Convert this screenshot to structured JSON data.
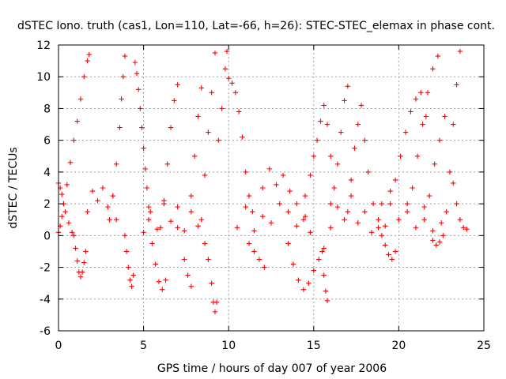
{
  "chart_data": {
    "type": "scatter",
    "title": "dSTEC Iono. truth (cas1, Lon=110, Lat=-66, h=26): STEC-STEC_elemax in phase cont.",
    "xlabel": "GPS time / hours of day 007 of year 2006",
    "ylabel": "dSTEC  / TECUs",
    "xlim": [
      0,
      25
    ],
    "ylim": [
      -6,
      12
    ],
    "x_ticks": [
      0,
      5,
      10,
      15,
      20,
      25
    ],
    "y_ticks": [
      -6,
      -4,
      -2,
      0,
      2,
      4,
      6,
      8,
      10,
      12
    ],
    "x_tick_labels": [
      "0",
      "5",
      "10",
      "15",
      "20",
      "25"
    ],
    "y_tick_labels": [
      "-6",
      "-4",
      "-2",
      "0",
      "2",
      "4",
      "6",
      "8",
      "10",
      "12"
    ],
    "grid": true,
    "marker": "plus",
    "color": "#ff0000",
    "series": [
      {
        "x": [
          0.0,
          0.1,
          0.2,
          0.3,
          0.5,
          0.7,
          0.9,
          1.1,
          1.3,
          1.5,
          1.7,
          1.8
        ],
        "y": [
          0.2,
          0.6,
          1.2,
          2.0,
          3.2,
          4.6,
          6.0,
          7.2,
          8.6,
          10.0,
          11.0,
          11.4
        ]
      },
      {
        "x": [
          0.0,
          0.1,
          0.2,
          0.3,
          0.4,
          0.6,
          0.8
        ],
        "y": [
          3.3,
          3.0,
          2.6,
          2.0,
          1.5,
          0.8,
          0.2
        ]
      },
      {
        "x": [
          0.9,
          1.0,
          1.1,
          1.2,
          1.3,
          1.4,
          1.5,
          1.6
        ],
        "y": [
          0.0,
          -0.8,
          -1.6,
          -2.3,
          -2.6,
          -2.3,
          -1.7,
          -1.0
        ]
      },
      {
        "x": [
          1.7,
          2.0,
          2.3,
          2.6,
          2.9,
          3.2,
          3.4
        ],
        "y": [
          1.5,
          2.8,
          2.2,
          3.0,
          1.8,
          2.5,
          1.0
        ]
      },
      {
        "x": [
          3.0,
          3.2,
          3.4,
          3.6,
          3.7,
          3.8,
          3.9
        ],
        "y": [
          1.0,
          2.5,
          4.5,
          6.8,
          8.6,
          10.0,
          11.3
        ]
      },
      {
        "x": [
          3.9,
          4.0,
          4.1,
          4.2,
          4.3,
          4.4
        ],
        "y": [
          0.0,
          -1.0,
          -2.0,
          -2.8,
          -3.2,
          -2.5
        ]
      },
      {
        "x": [
          4.5,
          4.6,
          4.7,
          4.8,
          4.9,
          5.0,
          5.1,
          5.2,
          5.3
        ],
        "y": [
          10.9,
          10.2,
          9.2,
          8.0,
          6.8,
          5.5,
          4.2,
          3.0,
          1.8
        ]
      },
      {
        "x": [
          5.3,
          5.5,
          5.7,
          5.9,
          6.1,
          6.3
        ],
        "y": [
          1.0,
          -0.5,
          -1.8,
          -2.9,
          -3.4,
          -2.8
        ]
      },
      {
        "x": [
          6.0,
          6.2,
          6.4,
          6.6,
          6.8,
          7.0
        ],
        "y": [
          0.5,
          2.0,
          4.5,
          6.8,
          8.5,
          9.5
        ]
      },
      {
        "x": [
          5.0,
          5.4,
          5.8,
          6.2,
          6.6,
          7.0,
          7.4,
          7.8,
          8.2
        ],
        "y": [
          0.2,
          1.5,
          0.4,
          2.2,
          0.9,
          1.8,
          0.3,
          1.5,
          0.6
        ]
      },
      {
        "x": [
          7.0,
          7.4,
          7.6,
          7.8
        ],
        "y": [
          0.5,
          -1.5,
          -2.5,
          -3.2
        ]
      },
      {
        "x": [
          7.8,
          8.0,
          8.2,
          8.4
        ],
        "y": [
          2.5,
          5.0,
          7.5,
          9.3
        ]
      },
      {
        "x": [
          8.4,
          8.6,
          8.8,
          9.0,
          9.2
        ],
        "y": [
          1.0,
          3.8,
          6.5,
          9.0,
          11.5
        ]
      },
      {
        "x": [
          8.6,
          8.8,
          9.0,
          9.1,
          9.2,
          9.3
        ],
        "y": [
          -0.5,
          -1.5,
          -3.0,
          -4.2,
          -4.8,
          -4.2
        ]
      },
      {
        "x": [
          9.4,
          9.6,
          9.8,
          9.9
        ],
        "y": [
          6.0,
          8.0,
          10.5,
          11.6
        ]
      },
      {
        "x": [
          10.0,
          10.2,
          10.4,
          10.6,
          10.8,
          11.0,
          11.2,
          11.4
        ],
        "y": [
          9.9,
          9.6,
          9.0,
          7.8,
          6.2,
          4.0,
          2.5,
          1.5
        ]
      },
      {
        "x": [
          10.5,
          11.0,
          11.5,
          12.0,
          12.5,
          13.0,
          13.5,
          14.0,
          14.5
        ],
        "y": [
          0.5,
          1.8,
          0.3,
          1.2,
          0.8,
          2.0,
          1.5,
          0.6,
          1.2
        ]
      },
      {
        "x": [
          11.2,
          11.5,
          11.8,
          12.1
        ],
        "y": [
          -0.5,
          -1.0,
          -1.5,
          -2.0
        ]
      },
      {
        "x": [
          12.0,
          12.4,
          12.8,
          13.2,
          13.6,
          14.0,
          14.4,
          14.8
        ],
        "y": [
          3.0,
          4.2,
          3.2,
          3.8,
          2.8,
          2.0,
          1.0,
          0.2
        ]
      },
      {
        "x": [
          13.5,
          13.8,
          14.1,
          14.4,
          14.7,
          15.0,
          15.3,
          15.6
        ],
        "y": [
          -0.5,
          -1.8,
          -2.8,
          -3.4,
          -3.0,
          -2.2,
          -1.5,
          -0.8
        ]
      },
      {
        "x": [
          14.5,
          14.8,
          15.0,
          15.2,
          15.4,
          15.6,
          15.8,
          16.0
        ],
        "y": [
          2.5,
          3.8,
          5.0,
          6.0,
          7.2,
          8.2,
          7.0,
          5.0
        ]
      },
      {
        "x": [
          15.5,
          15.6,
          15.7,
          15.8
        ],
        "y": [
          -1.0,
          -2.5,
          -3.5,
          -4.1
        ]
      },
      {
        "x": [
          16.0,
          16.2,
          16.4,
          16.6,
          16.8,
          17.0
        ],
        "y": [
          2.0,
          3.0,
          4.5,
          6.5,
          8.5,
          9.4
        ]
      },
      {
        "x": [
          16.0,
          16.4,
          16.8,
          17.2,
          17.6,
          18.0,
          18.4,
          18.8,
          19.2
        ],
        "y": [
          0.5,
          1.8,
          1.0,
          2.5,
          0.8,
          1.5,
          0.2,
          1.0,
          0.6
        ]
      },
      {
        "x": [
          17.0,
          17.2,
          17.4,
          17.6,
          17.8,
          18.0,
          18.2,
          18.5
        ],
        "y": [
          1.5,
          3.5,
          5.5,
          7.0,
          8.2,
          6.0,
          4.0,
          2.0
        ]
      },
      {
        "x": [
          18.8,
          19.0,
          19.2,
          19.4,
          19.6,
          19.8
        ],
        "y": [
          0.5,
          0.0,
          -0.6,
          -1.2,
          -1.5,
          -1.0
        ]
      },
      {
        "x": [
          19.5,
          19.8,
          20.1,
          20.4,
          20.7,
          21.0,
          21.3,
          21.6
        ],
        "y": [
          2.0,
          3.5,
          5.0,
          6.5,
          7.8,
          8.6,
          9.0,
          7.5
        ]
      },
      {
        "x": [
          20.5,
          20.8,
          21.1,
          21.4,
          21.7,
          22.0,
          22.3
        ],
        "y": [
          1.5,
          3.0,
          5.0,
          7.0,
          9.0,
          10.5,
          11.3
        ]
      },
      {
        "x": [
          21.5,
          21.8,
          22.1,
          22.4,
          22.7
        ],
        "y": [
          1.0,
          2.5,
          4.5,
          6.0,
          7.5
        ]
      },
      {
        "x": [
          22.0,
          22.2,
          22.4,
          22.6,
          22.8,
          23.0,
          23.2,
          23.4,
          23.6
        ],
        "y": [
          -0.3,
          -0.6,
          -0.4,
          0.0,
          1.5,
          4.0,
          7.0,
          9.5,
          11.6
        ]
      },
      {
        "x": [
          23.2,
          23.4,
          23.6,
          23.8,
          24.0
        ],
        "y": [
          3.3,
          2.0,
          1.0,
          0.5,
          0.4
        ]
      },
      {
        "x": [
          19.0,
          19.5,
          20.0,
          20.5,
          21.0,
          21.5,
          22.0,
          22.5
        ],
        "y": [
          2.0,
          2.8,
          1.0,
          2.0,
          0.5,
          1.8,
          0.3,
          0.8
        ]
      }
    ]
  }
}
